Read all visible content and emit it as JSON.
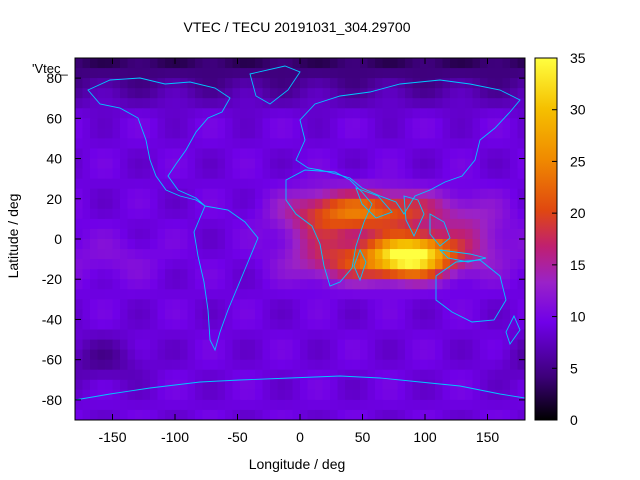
{
  "chart_data": {
    "type": "heatmap",
    "title": "VTEC / TECU 20191031_304.29700",
    "xlabel": "Longitude / deg",
    "ylabel": "Latitude / deg",
    "series_key": "'Vtec_",
    "xlim": [
      -180,
      180
    ],
    "ylim": [
      -90,
      90
    ],
    "x_ticks": [
      -150,
      -100,
      -50,
      0,
      50,
      100,
      150
    ],
    "y_ticks": [
      -80,
      -60,
      -40,
      -20,
      0,
      20,
      40,
      60,
      80
    ],
    "colorbar": {
      "range": [
        0,
        35
      ],
      "ticks": [
        0,
        5,
        10,
        15,
        20,
        25,
        30,
        35
      ],
      "stops": [
        "#000000",
        "#3d007a",
        "#7000e8",
        "#9a22c8",
        "#c02070",
        "#e04810",
        "#f08a00",
        "#f5c000",
        "#ffff40"
      ]
    },
    "background_vtec": 9,
    "features": [
      {
        "name": "equatorial-anomaly-core",
        "lon": 90,
        "lat": -8,
        "vtec": 34
      },
      {
        "name": "equatorial-anomaly-north",
        "lon": 60,
        "lat": 14,
        "vtec": 26
      },
      {
        "name": "equatorial-anomaly-south",
        "lon": 50,
        "lat": -12,
        "vtec": 24
      },
      {
        "name": "africa-enhancement",
        "lon": 20,
        "lat": 5,
        "vtec": 20
      },
      {
        "name": "pacific-enhancement",
        "lon": 140,
        "lat": 0,
        "vtec": 17
      },
      {
        "name": "east-pacific-band",
        "lon": -150,
        "lat": -10,
        "vtec": 13
      },
      {
        "name": "arctic-depletion",
        "lon": 0,
        "lat": 85,
        "vtec": 3
      },
      {
        "name": "antarctic-depletion",
        "lon": -160,
        "lat": -60,
        "vtec": 5
      }
    ]
  }
}
